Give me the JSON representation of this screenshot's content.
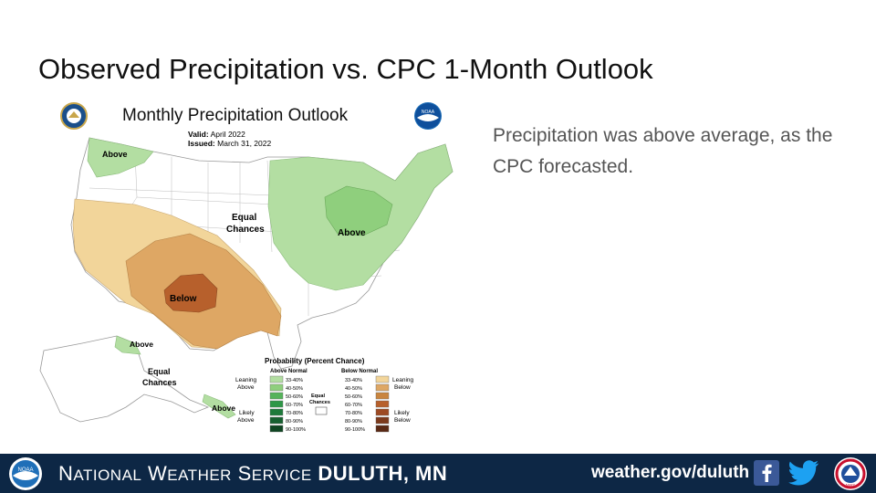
{
  "slide": {
    "title": "Observed Precipitation vs. CPC 1-Month Outlook",
    "side_text": "Precipitation was above average, as the CPC forecasted."
  },
  "map": {
    "title": "Monthly Precipitation Outlook",
    "valid_label": "Valid:",
    "valid_value": "April 2022",
    "issued_label": "Issued:",
    "issued_value": "March 31, 2022",
    "noaa_badge_text": "NOAA",
    "regions": {
      "above_nw": "Above",
      "above_east": "Above",
      "below_sw": "Below",
      "equal_chances_conus_1": "Equal",
      "equal_chances_conus_2": "Chances",
      "above_alaska": "Above",
      "equal_chances_alaska_1": "Equal",
      "equal_chances_alaska_2": "Chances",
      "above_hawaii": "Above"
    }
  },
  "legend": {
    "title": "Probability (Percent Chance)",
    "above_header": "Above Normal",
    "below_header": "Below Normal",
    "equal_1": "Equal",
    "equal_2": "Chances",
    "leaning_above_1": "Leaning",
    "leaning_above_2": "Above",
    "likely_above_1": "Likely",
    "likely_above_2": "Above",
    "leaning_below_1": "Leaning",
    "leaning_below_2": "Below",
    "likely_below_1": "Likely",
    "likely_below_2": "Below",
    "bins": [
      "33-40%",
      "40-50%",
      "50-60%",
      "60-70%",
      "70-80%",
      "80-90%",
      "90-100%"
    ],
    "above_colors": [
      "#b3dea2",
      "#8fcf7d",
      "#55b35a",
      "#2e9747",
      "#1e7a3b",
      "#166030",
      "#0f4522"
    ],
    "below_colors": [
      "#f2d59a",
      "#dea764",
      "#c9853f",
      "#b7602c",
      "#9d4a23",
      "#7c3a1c",
      "#5a2914"
    ]
  },
  "footer": {
    "org_n": "N",
    "org_ational": "ATIONAL",
    "org_w": "W",
    "org_eather": "EATHER",
    "org_s": "S",
    "org_ervice": "ERVICE",
    "office": "DULUTH, MN",
    "url": "weather.gov/duluth",
    "noaa_logo_text": "NOAA",
    "nws_logo_text": "NWS"
  }
}
